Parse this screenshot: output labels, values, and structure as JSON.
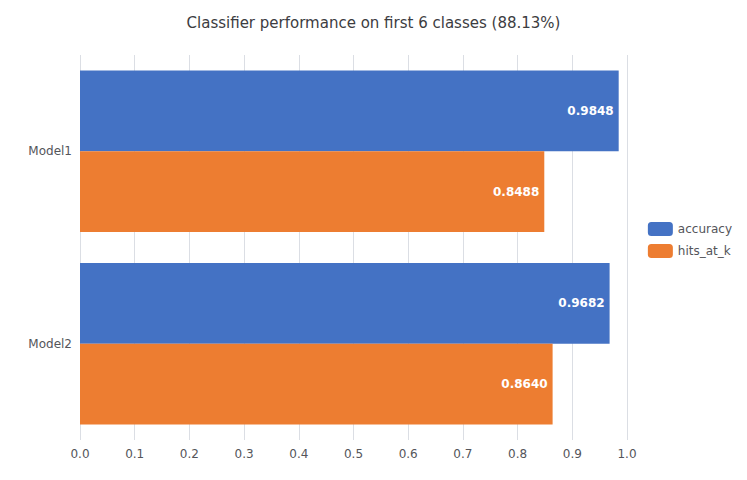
{
  "chart_data": {
    "type": "bar",
    "orientation": "horizontal",
    "title": "Classifier performance on first 6 classes (88.13%)",
    "categories": [
      "Model1",
      "Model2"
    ],
    "series": [
      {
        "name": "accuracy",
        "color": "#4472c4",
        "values": [
          0.9848,
          0.9682
        ],
        "value_labels": [
          "0.9848",
          "0.9682"
        ]
      },
      {
        "name": "hits_at_k",
        "color": "#ed7d31",
        "values": [
          0.8488,
          0.864
        ],
        "value_labels": [
          "0.8488",
          "0.8640"
        ]
      }
    ],
    "xlim": [
      0,
      1
    ],
    "xticks": [
      {
        "value": 0,
        "label": "0.0"
      },
      0.1,
      0.2,
      0.3,
      0.4,
      0.5,
      0.6,
      0.7,
      0.8,
      0.9,
      {
        "value": 1,
        "label": "1.0"
      }
    ],
    "grid": true,
    "legend": "right",
    "data_labels": true
  }
}
